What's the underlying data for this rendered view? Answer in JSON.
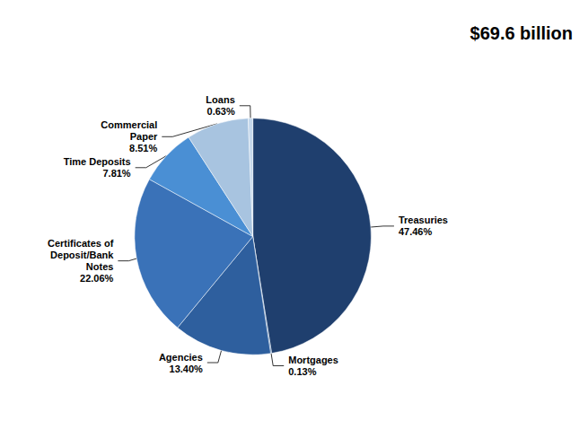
{
  "chart_data": {
    "type": "pie",
    "title": "$69.6 billion",
    "categories": [
      "Treasuries",
      "Mortgages",
      "Agencies",
      "Certificates of\nDeposit/Bank\nNotes",
      "Time Deposits",
      "Commercial\nPaper",
      "Loans"
    ],
    "values": [
      47.46,
      0.13,
      13.4,
      22.06,
      7.81,
      8.51,
      0.63
    ],
    "value_labels": [
      "47.46%",
      "0.13%",
      "13.40%",
      "22.06%",
      "7.81%",
      "8.51%",
      "0.63%"
    ],
    "colors": [
      "#1f3f6e",
      "#2e5f9e",
      "#2e5f9e",
      "#3a72b8",
      "#4a8fd4",
      "#a8c4e0",
      "#c5d8ec"
    ],
    "data_labels": true
  }
}
